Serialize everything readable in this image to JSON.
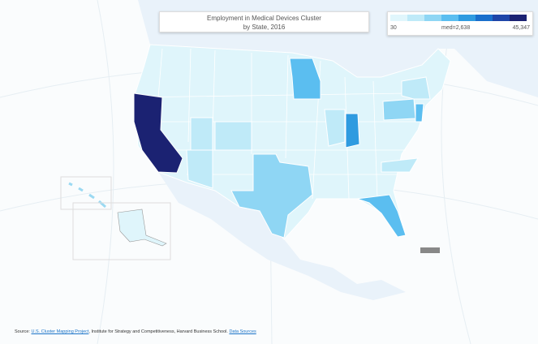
{
  "header": {
    "title": "Employment in Medical Devices Cluster",
    "subtitle": "by State, 2016"
  },
  "legend": {
    "min": "30",
    "median": "med=2,638",
    "max": "45,347",
    "colors": [
      "#e0f6fc",
      "#bfeaf8",
      "#8fd6f4",
      "#5bbef0",
      "#2f9be0",
      "#1a6fcc",
      "#1f45a8",
      "#1b2272"
    ]
  },
  "footer": {
    "prefix": "Source: ",
    "link1": "U.S. Cluster Mapping Project",
    "middle": ", Institute for Strategy and Competitiveness, Harvard Business School. ",
    "link2": "Data Sources"
  }
}
